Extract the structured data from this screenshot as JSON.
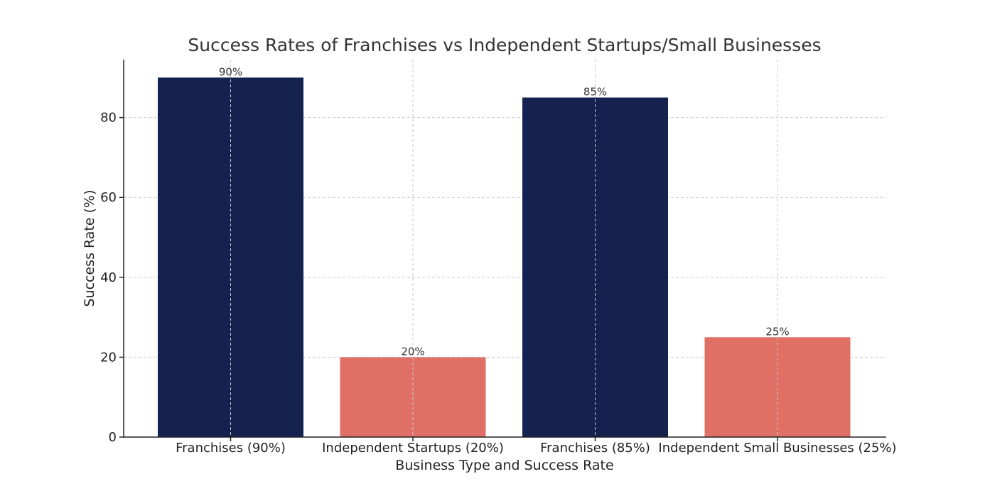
{
  "chart_data": {
    "type": "bar",
    "title": "Success Rates of Franchises vs Independent Startups/Small Businesses",
    "xlabel": "Business Type and Success Rate",
    "ylabel": "Success Rate (%)",
    "categories": [
      "Franchises (90%)",
      "Independent Startups (20%)",
      "Franchises (85%)",
      "Independent Small Businesses (25%)"
    ],
    "values": [
      90,
      20,
      85,
      25
    ],
    "data_labels": [
      "90%",
      "20%",
      "85%",
      "25%"
    ],
    "bar_colors": [
      "#15224f",
      "#e07065",
      "#15224f",
      "#e07065"
    ],
    "ylim": [
      0,
      94.5
    ],
    "yticks": [
      0,
      20,
      40,
      60,
      80
    ],
    "grid": true,
    "legend": "none"
  }
}
